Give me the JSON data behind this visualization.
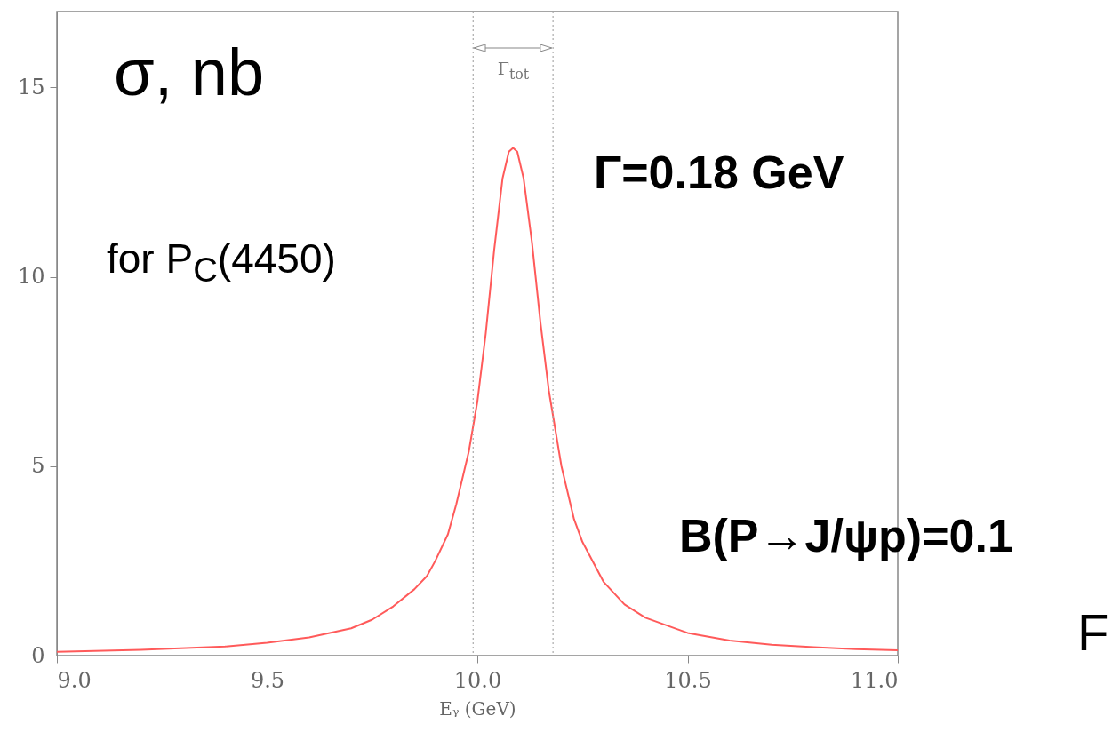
{
  "chart_data": {
    "type": "line",
    "xlabel": "Eᵧ (GeV)",
    "x": [
      9.0,
      9.2,
      9.4,
      9.5,
      9.6,
      9.7,
      9.75,
      9.8,
      9.85,
      9.88,
      9.9,
      9.93,
      9.95,
      9.98,
      10.0,
      10.02,
      10.04,
      10.06,
      10.075,
      10.085,
      10.095,
      10.11,
      10.13,
      10.15,
      10.17,
      10.2,
      10.23,
      10.25,
      10.3,
      10.35,
      10.4,
      10.5,
      10.6,
      10.7,
      10.8,
      10.9,
      11.0
    ],
    "series": [
      {
        "color": "#ff5a5a",
        "values": [
          0.1,
          0.15,
          0.24,
          0.34,
          0.48,
          0.72,
          0.95,
          1.3,
          1.75,
          2.1,
          2.5,
          3.2,
          4.0,
          5.4,
          6.7,
          8.5,
          10.7,
          12.6,
          13.3,
          13.4,
          13.3,
          12.6,
          10.9,
          8.8,
          7.0,
          5.0,
          3.6,
          3.0,
          1.95,
          1.35,
          1.0,
          0.6,
          0.4,
          0.29,
          0.22,
          0.17,
          0.14
        ]
      }
    ],
    "xlim": [
      9.0,
      11.0
    ],
    "ylim": [
      0,
      17
    ],
    "xticks": [
      {
        "value": 9,
        "label": "9.0"
      },
      9.5,
      {
        "value": 10,
        "label": "10.0"
      },
      10.5,
      {
        "value": 11,
        "label": "11.0"
      }
    ],
    "yticks": [
      0,
      5,
      10,
      15
    ],
    "ref_lines": [
      {
        "axis": "x",
        "value": 9.99,
        "color": "#aaaaaa",
        "line_style": "dotted"
      },
      {
        "axis": "x",
        "value": 10.18,
        "color": "#aaaaaa",
        "line_style": "dotted"
      }
    ],
    "annotations": [
      "σ, nb",
      "for P$_{C}$(4450)",
      "Γ=0.18 GeV",
      "B(P→J/ψp)=0.1",
      "F",
      "Γ$_{tot}$"
    ],
    "grid": false,
    "marker": "none",
    "line_style": "solid"
  }
}
